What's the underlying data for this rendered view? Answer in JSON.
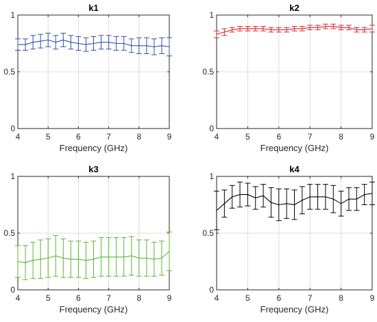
{
  "chart_data": [
    {
      "type": "line",
      "title": "k1",
      "xlabel": "Frequency (GHz)",
      "ylabel": "",
      "xlim": [
        4,
        9
      ],
      "ylim": [
        0,
        1
      ],
      "xticks": [
        "4",
        "5",
        "6",
        "7",
        "8",
        "9"
      ],
      "yticks": [
        "0",
        "0.5",
        "1"
      ],
      "grid": true,
      "error_bars": true,
      "color": "#2f4fa8",
      "x": [
        4.0,
        4.25,
        4.5,
        4.75,
        5.0,
        5.25,
        5.5,
        5.75,
        6.0,
        6.25,
        6.5,
        6.75,
        7.0,
        7.25,
        7.5,
        7.75,
        8.0,
        8.25,
        8.5,
        8.75,
        9.0
      ],
      "y": [
        0.74,
        0.74,
        0.76,
        0.77,
        0.78,
        0.76,
        0.78,
        0.76,
        0.75,
        0.74,
        0.75,
        0.76,
        0.76,
        0.75,
        0.75,
        0.73,
        0.73,
        0.73,
        0.72,
        0.73,
        0.72
      ],
      "err": [
        0.05,
        0.05,
        0.06,
        0.06,
        0.06,
        0.06,
        0.06,
        0.06,
        0.06,
        0.06,
        0.06,
        0.06,
        0.06,
        0.06,
        0.06,
        0.06,
        0.07,
        0.07,
        0.07,
        0.07,
        0.08
      ]
    },
    {
      "type": "line",
      "title": "k2",
      "xlabel": "Frequency (GHz)",
      "ylabel": "",
      "xlim": [
        4,
        9
      ],
      "ylim": [
        0,
        1
      ],
      "xticks": [
        "4",
        "5",
        "6",
        "7",
        "8",
        "9"
      ],
      "yticks": [
        "0",
        "0.5",
        "1"
      ],
      "grid": true,
      "error_bars": true,
      "color": "#d9252b",
      "x": [
        4.0,
        4.25,
        4.5,
        4.75,
        5.0,
        5.25,
        5.5,
        5.75,
        6.0,
        6.25,
        6.5,
        6.75,
        7.0,
        7.25,
        7.5,
        7.75,
        8.0,
        8.25,
        8.5,
        8.75,
        9.0
      ],
      "y": [
        0.83,
        0.85,
        0.87,
        0.88,
        0.88,
        0.88,
        0.88,
        0.87,
        0.87,
        0.87,
        0.88,
        0.88,
        0.89,
        0.89,
        0.9,
        0.9,
        0.89,
        0.89,
        0.87,
        0.87,
        0.88
      ],
      "err": [
        0.03,
        0.03,
        0.02,
        0.02,
        0.02,
        0.02,
        0.02,
        0.02,
        0.02,
        0.02,
        0.02,
        0.02,
        0.02,
        0.02,
        0.02,
        0.02,
        0.02,
        0.02,
        0.02,
        0.02,
        0.03
      ]
    },
    {
      "type": "line",
      "title": "k3",
      "xlabel": "Frequency (GHz)",
      "ylabel": "",
      "xlim": [
        4,
        9
      ],
      "ylim": [
        0,
        1
      ],
      "xticks": [
        "4",
        "5",
        "6",
        "7",
        "8",
        "9"
      ],
      "yticks": [
        "0",
        "0.5",
        "1"
      ],
      "grid": true,
      "error_bars": true,
      "color": "#5ab52f",
      "x": [
        4.0,
        4.25,
        4.5,
        4.75,
        5.0,
        5.25,
        5.5,
        5.75,
        6.0,
        6.25,
        6.5,
        6.75,
        7.0,
        7.25,
        7.5,
        7.75,
        8.0,
        8.25,
        8.5,
        8.75,
        9.0
      ],
      "y": [
        0.25,
        0.24,
        0.26,
        0.27,
        0.28,
        0.3,
        0.28,
        0.27,
        0.27,
        0.26,
        0.27,
        0.29,
        0.29,
        0.29,
        0.29,
        0.3,
        0.28,
        0.28,
        0.27,
        0.28,
        0.34
      ],
      "err": [
        0.14,
        0.15,
        0.16,
        0.17,
        0.17,
        0.18,
        0.17,
        0.16,
        0.16,
        0.16,
        0.16,
        0.17,
        0.17,
        0.17,
        0.17,
        0.17,
        0.16,
        0.16,
        0.15,
        0.15,
        0.17
      ]
    },
    {
      "type": "line",
      "title": "k4",
      "xlabel": "Frequency (GHz)",
      "ylabel": "",
      "xlim": [
        4,
        9
      ],
      "ylim": [
        0,
        1
      ],
      "xticks": [
        "4",
        "5",
        "6",
        "7",
        "8",
        "9"
      ],
      "yticks": [
        "0",
        "0.5",
        "1"
      ],
      "grid": true,
      "error_bars": true,
      "color": "#000000",
      "x": [
        4.0,
        4.25,
        4.5,
        4.75,
        5.0,
        5.25,
        5.5,
        5.75,
        6.0,
        6.25,
        6.5,
        6.75,
        7.0,
        7.25,
        7.5,
        7.75,
        8.0,
        8.25,
        8.5,
        8.75,
        9.0
      ],
      "y": [
        0.7,
        0.76,
        0.82,
        0.84,
        0.84,
        0.81,
        0.83,
        0.77,
        0.75,
        0.76,
        0.75,
        0.79,
        0.82,
        0.82,
        0.82,
        0.8,
        0.76,
        0.8,
        0.8,
        0.84,
        0.85
      ],
      "err": [
        0.17,
        0.12,
        0.1,
        0.11,
        0.1,
        0.1,
        0.1,
        0.13,
        0.14,
        0.13,
        0.13,
        0.12,
        0.11,
        0.11,
        0.11,
        0.12,
        0.11,
        0.1,
        0.1,
        0.09,
        0.1
      ]
    }
  ]
}
